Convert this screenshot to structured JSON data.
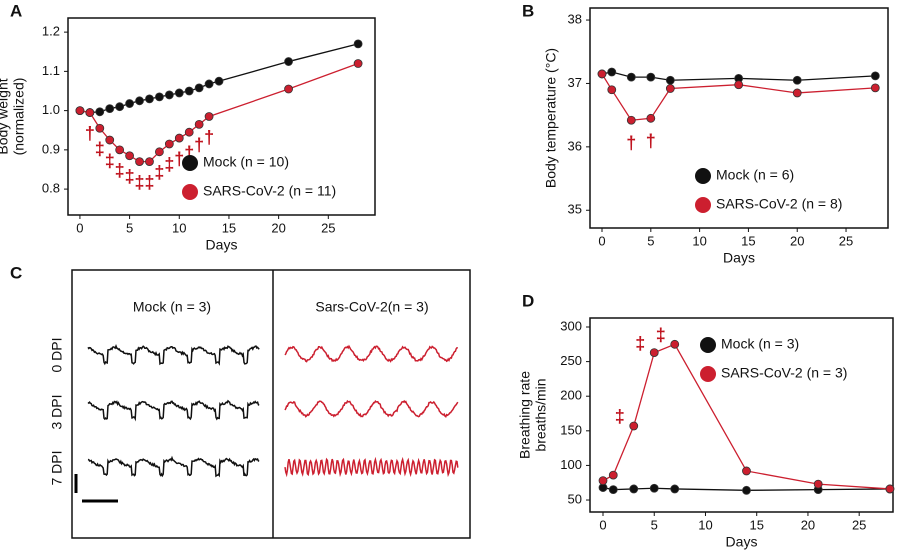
{
  "chart_data": [
    {
      "type": "line",
      "panel_label": "A",
      "xlabel": "Days",
      "ylabel": [
        "Body weight",
        "(normalized)"
      ],
      "xlim": [
        -1.2,
        29.7
      ],
      "ylim": [
        0.734,
        1.236
      ],
      "xticks": [
        0,
        5,
        10,
        15,
        20,
        25
      ],
      "yticks": [
        0.8,
        0.9,
        {
          "value": 1,
          "label": "1.0"
        },
        1.1,
        1.2
      ],
      "legend": "lower right",
      "series": [
        {
          "name": "Mock (n = 10)",
          "color": "#111111",
          "x": [
            0,
            1,
            2,
            3,
            4,
            5,
            6,
            7,
            8,
            9,
            10,
            11,
            12,
            13,
            14,
            21,
            28
          ],
          "values": [
            1.0,
            0.995,
            0.997,
            1.005,
            1.01,
            1.018,
            1.025,
            1.03,
            1.035,
            1.04,
            1.045,
            1.05,
            1.058,
            1.068,
            1.075,
            1.125,
            1.17
          ]
        },
        {
          "name": "SARS-CoV-2 (n = 11)",
          "color": "#cc1f2f",
          "x": [
            0,
            1,
            2,
            3,
            4,
            5,
            6,
            7,
            8,
            9,
            10,
            11,
            12,
            13,
            21,
            28
          ],
          "values": [
            1.0,
            0.995,
            0.955,
            0.925,
            0.9,
            0.885,
            0.87,
            0.87,
            0.895,
            0.915,
            0.93,
            0.945,
            0.965,
            0.985,
            1.055,
            1.12
          ]
        }
      ],
      "annotations": [
        {
          "text": "†",
          "x": 1
        },
        {
          "text": "‡",
          "x": 2
        },
        {
          "text": "‡",
          "x": 3
        },
        {
          "text": "‡",
          "x": 4
        },
        {
          "text": "‡",
          "x": 5
        },
        {
          "text": "‡",
          "x": 6
        },
        {
          "text": "‡",
          "x": 7
        },
        {
          "text": "‡",
          "x": 8
        },
        {
          "text": "‡",
          "x": 9
        },
        {
          "text": "†",
          "x": 10
        },
        {
          "text": "†",
          "x": 11
        },
        {
          "text": "†",
          "x": 12
        },
        {
          "text": "†",
          "x": 13
        }
      ]
    },
    {
      "type": "line",
      "panel_label": "B",
      "xlabel": "Days",
      "ylabel": [
        "Body temperature (°C)"
      ],
      "xlim": [
        -1.23,
        29.3
      ],
      "ylim": [
        34.72,
        38.19
      ],
      "xticks": [
        0,
        5,
        10,
        15,
        20,
        25
      ],
      "yticks": [
        35,
        36,
        37,
        38
      ],
      "legend": "lower right",
      "series": [
        {
          "name": "Mock (n = 6)",
          "color": "#111111",
          "x": [
            0,
            1,
            3,
            5,
            7,
            14,
            20,
            28
          ],
          "values": [
            37.15,
            37.18,
            37.1,
            37.1,
            37.05,
            37.08,
            37.05,
            37.12
          ]
        },
        {
          "name": "SARS-CoV-2 (n = 8)",
          "color": "#cc1f2f",
          "x": [
            0,
            1,
            3,
            5,
            7,
            14,
            20,
            28
          ],
          "values": [
            37.15,
            36.9,
            36.42,
            36.45,
            36.92,
            36.98,
            36.85,
            36.93
          ]
        }
      ],
      "annotations": [
        {
          "text": "†",
          "x": 3
        },
        {
          "text": "†",
          "x": 5
        }
      ]
    },
    {
      "type": "line",
      "panel_label": "D",
      "xlabel": "Days",
      "ylabel": [
        "Breathing rate",
        "breaths/min"
      ],
      "xlim": [
        -1.27,
        28.3
      ],
      "ylim": [
        32.7,
        313
      ],
      "xticks": [
        0,
        5,
        10,
        15,
        20,
        25
      ],
      "yticks": [
        50,
        100,
        150,
        200,
        250,
        300
      ],
      "legend": "upper right",
      "series": [
        {
          "name": "Mock (n = 3)",
          "color": "#111111",
          "x": [
            0,
            1,
            3,
            5,
            7,
            14,
            21,
            28
          ],
          "values": [
            68,
            65,
            66,
            67,
            66,
            64,
            65,
            66
          ]
        },
        {
          "name": "SARS-CoV-2 (n = 3)",
          "color": "#cc1f2f",
          "x": [
            0,
            1,
            3,
            5,
            7,
            14,
            21,
            28
          ],
          "values": [
            78,
            86,
            157,
            263,
            275,
            92,
            73,
            66
          ]
        }
      ],
      "annotations": [
        {
          "text": "‡",
          "x": 3
        },
        {
          "text": "‡",
          "x": 5
        },
        {
          "text": "‡",
          "x": 7
        }
      ]
    }
  ],
  "trace_panel": {
    "panel_label": "C",
    "columns": [
      "Mock (n = 3)",
      "Sars-CoV-2(n = 3)"
    ],
    "rows": [
      "0 DPI",
      "3 DPI",
      "7 DPI"
    ]
  }
}
